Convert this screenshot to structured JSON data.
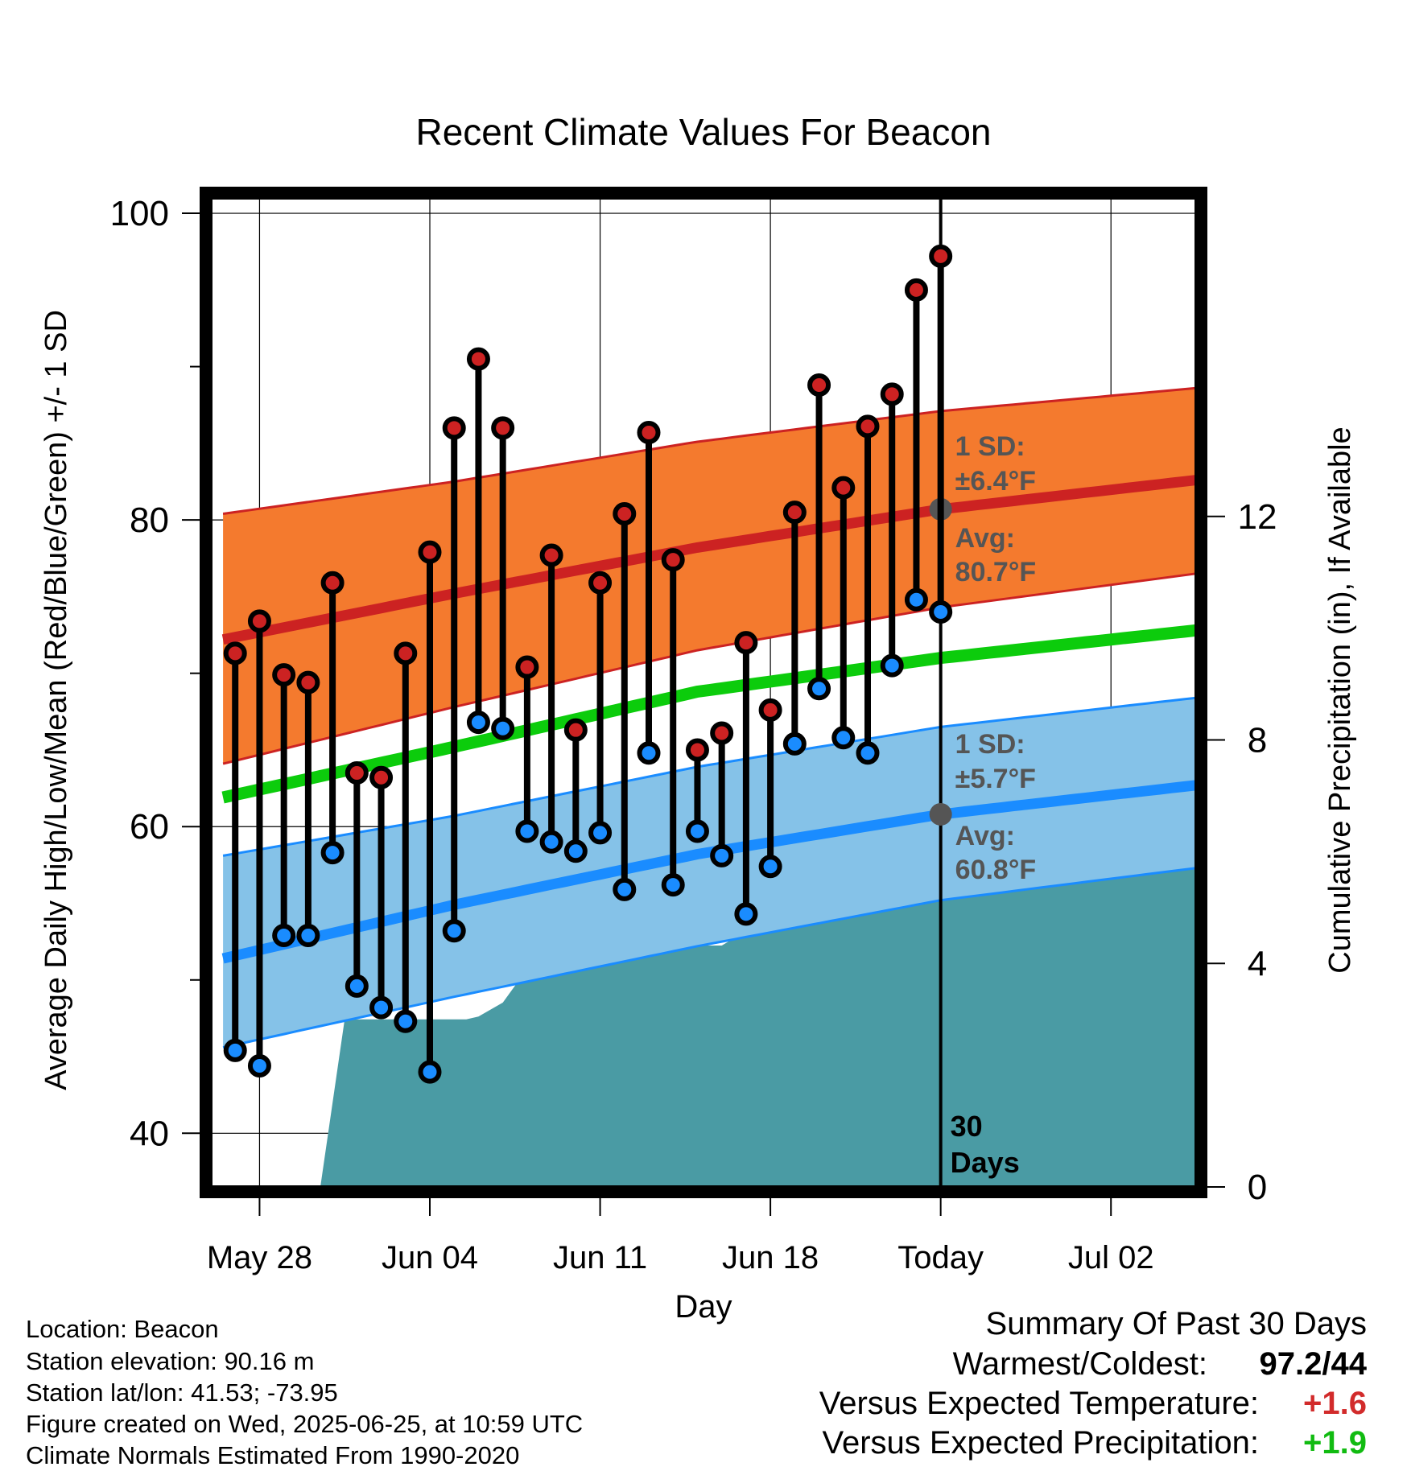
{
  "chart_data": {
    "type": "line",
    "title": "Recent Climate Values For Beacon",
    "xlabel": "Day",
    "ylabel_left": "Average Daily High/Low/Mean (Red/Blue/Green) +/- 1 SD",
    "ylabel_right": "Cumulative Precipitation (in), If Available",
    "ylim": [
      36.5,
      101
    ],
    "y2lim": [
      0,
      17.7
    ],
    "yticks": [
      40,
      60,
      80,
      100
    ],
    "y2ticks": [
      0,
      4,
      8,
      12
    ],
    "xticks": [
      "May 28",
      "Jun 04",
      "Jun 11",
      "Jun 18",
      "Today",
      "Jul 02"
    ],
    "x_start_day": 0,
    "x_end_day": 40.5,
    "xtick_days": [
      2,
      9,
      16,
      23,
      30,
      37
    ],
    "today_day": 30,
    "today_label": "30\nDays",
    "grid": true,
    "daily_obs": [
      {
        "day": 1,
        "high": 71.3,
        "low": 45.4
      },
      {
        "day": 2,
        "high": 73.4,
        "low": 44.4
      },
      {
        "day": 3,
        "high": 69.9,
        "low": 52.9
      },
      {
        "day": 4,
        "high": 69.4,
        "low": 52.9
      },
      {
        "day": 5,
        "high": 75.9,
        "low": 58.3
      },
      {
        "day": 6,
        "high": 63.5,
        "low": 49.6
      },
      {
        "day": 7,
        "high": 63.2,
        "low": 48.2
      },
      {
        "day": 8,
        "high": 71.3,
        "low": 47.3
      },
      {
        "day": 9,
        "high": 77.9,
        "low": 44.0
      },
      {
        "day": 10,
        "high": 86.0,
        "low": 53.2
      },
      {
        "day": 11,
        "high": 90.5,
        "low": 66.8
      },
      {
        "day": 12,
        "high": 86.0,
        "low": 66.4
      },
      {
        "day": 13,
        "high": 70.4,
        "low": 59.7
      },
      {
        "day": 14,
        "high": 77.7,
        "low": 59.0
      },
      {
        "day": 15,
        "high": 66.3,
        "low": 58.4
      },
      {
        "day": 16,
        "high": 75.9,
        "low": 59.6
      },
      {
        "day": 17,
        "high": 80.4,
        "low": 55.9
      },
      {
        "day": 18,
        "high": 85.7,
        "low": 64.8
      },
      {
        "day": 19,
        "high": 77.4,
        "low": 56.2
      },
      {
        "day": 20,
        "high": 65.0,
        "low": 59.7
      },
      {
        "day": 21,
        "high": 66.1,
        "low": 58.1
      },
      {
        "day": 22,
        "high": 72.0,
        "low": 54.3
      },
      {
        "day": 23,
        "high": 67.6,
        "low": 57.4
      },
      {
        "day": 24,
        "high": 80.5,
        "low": 65.4
      },
      {
        "day": 25,
        "high": 88.8,
        "low": 69.0
      },
      {
        "day": 26,
        "high": 82.1,
        "low": 65.8
      },
      {
        "day": 27,
        "high": 86.1,
        "low": 64.8
      },
      {
        "day": 28,
        "high": 88.2,
        "low": 70.5
      },
      {
        "day": 29,
        "high": 95.0,
        "low": 74.8
      },
      {
        "day": 30,
        "high": 97.2,
        "low": 74.0
      }
    ],
    "normals": {
      "day": [
        0.5,
        10,
        20,
        30,
        40.5
      ],
      "avg_high": [
        72.2,
        75.2,
        78.2,
        80.7,
        82.6
      ],
      "avg_low": [
        51.4,
        54.9,
        58.2,
        60.8,
        62.7
      ],
      "avg_mean": [
        61.9,
        65.2,
        68.8,
        71.0,
        72.8
      ],
      "high_sd_upper": [
        80.4,
        82.5,
        85.1,
        87.1,
        88.6
      ],
      "high_sd_lower": [
        64.1,
        67.8,
        71.5,
        74.3,
        76.5
      ],
      "low_sd_upper": [
        58.1,
        60.7,
        63.9,
        66.5,
        68.4
      ],
      "low_sd_lower": [
        45.6,
        48.9,
        52.2,
        55.2,
        57.3
      ]
    },
    "precip": {
      "day": [
        0.5,
        4.5,
        5.5,
        6,
        10.5,
        11,
        12,
        13,
        14,
        15,
        16,
        17,
        18,
        19,
        20,
        21,
        21.5,
        22,
        23,
        24,
        25,
        26,
        27,
        28,
        29,
        30,
        40.5
      ],
      "cum": [
        0,
        0,
        3.0,
        3.0,
        3.0,
        3.05,
        3.3,
        3.9,
        3.95,
        4.15,
        4.25,
        4.25,
        4.25,
        4.28,
        4.32,
        4.32,
        4.45,
        4.6,
        4.9,
        5.9,
        5.9,
        5.9,
        5.9,
        6.0,
        6.0,
        6.0,
        6.0
      ]
    },
    "annotations": {
      "high_sd_title": "1 SD:",
      "high_sd_value": "±6.4°F",
      "high_avg_title": "Avg:",
      "high_avg_value": "80.7°F",
      "low_sd_title": "1 SD:",
      "low_sd_value": "±5.7°F",
      "low_avg_title": "Avg:",
      "low_avg_value": "60.8°F"
    },
    "colors": {
      "high_dot": "#cc2222",
      "low_dot": "#1a8cff",
      "high_band": "#f47a2e",
      "high_line": "#cc2222",
      "low_band": "#85c2e8",
      "low_line": "#1a8cff",
      "mean_line": "#0ccc0c",
      "precip_fill": "#4a9ba4",
      "annotation": "#555555"
    }
  },
  "info": {
    "location": "Location: Beacon",
    "elevation": "Station elevation: 90.16 m",
    "latlon": "Station lat/lon: 41.53; -73.95",
    "created": "Figure created on Wed, 2025-06-25, at 10:59 UTC",
    "normals": "Climate Normals Estimated From 1990-2020"
  },
  "summary": {
    "title": "Summary Of Past 30 Days",
    "warm_cold_label": "Warmest/Coldest:",
    "warm_cold_value": "97.2/44",
    "temp_label": "Versus Expected Temperature:",
    "temp_value": "+1.6",
    "temp_color": "#d22b2b",
    "precip_label": "Versus Expected Precipitation:",
    "precip_value": "+1.9",
    "precip_color": "#11bb11"
  }
}
